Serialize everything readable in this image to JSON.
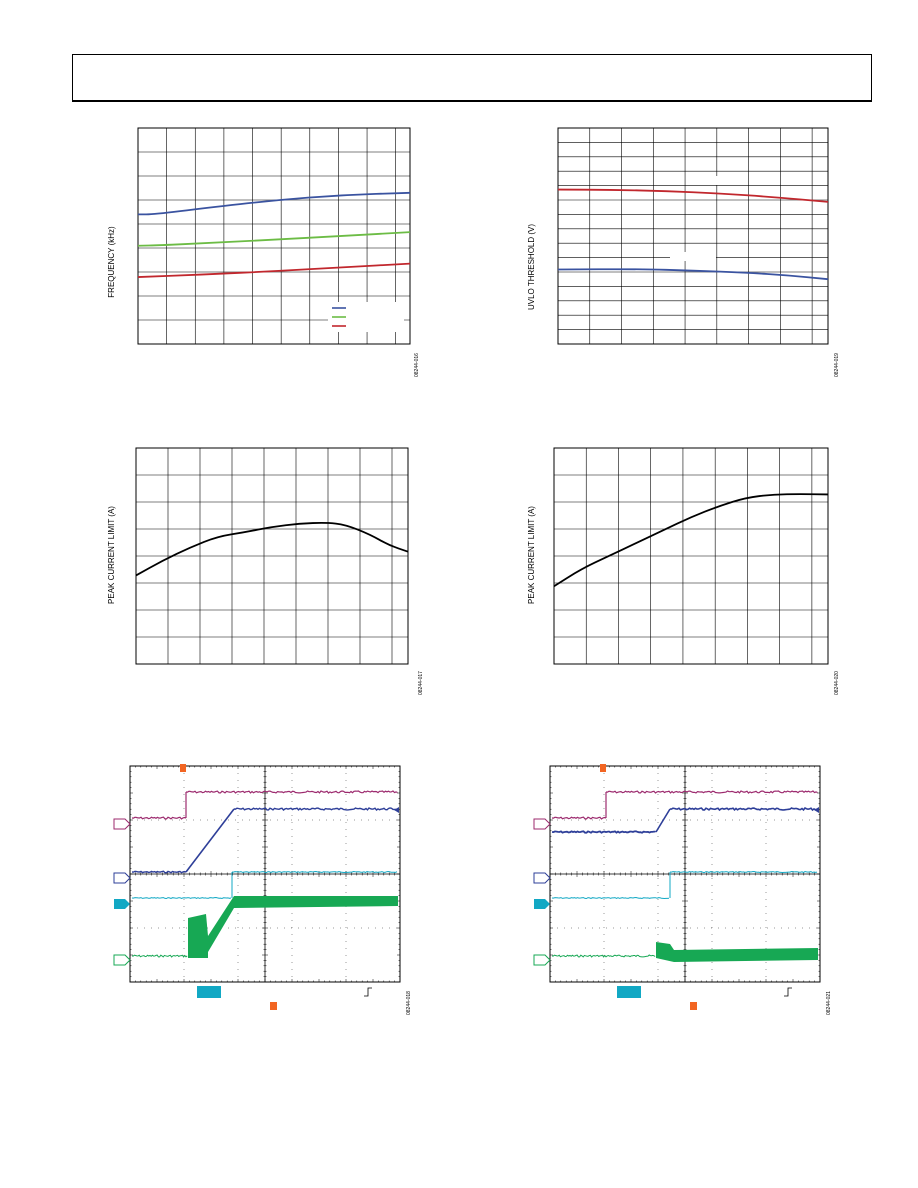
{
  "page": {
    "header": ""
  },
  "charts": [
    {
      "type": "line",
      "ylabel": "FREQUENCY (kHz)",
      "figure_code": "08244-016",
      "colors": [
        "#3a53a0",
        "#6cbc45",
        "#c1272d"
      ],
      "series": [
        {
          "name": "",
          "color": "#3a53a0",
          "points": [
            [
              0.0,
              0.6
            ],
            [
              0.06,
              0.6
            ],
            [
              0.25,
              0.63
            ],
            [
              0.5,
              0.665
            ],
            [
              0.75,
              0.69
            ],
            [
              1.0,
              0.7
            ]
          ]
        },
        {
          "name": "",
          "color": "#6cbc45",
          "points": [
            [
              0.0,
              0.455
            ],
            [
              0.08,
              0.457
            ],
            [
              0.25,
              0.467
            ],
            [
              0.5,
              0.483
            ],
            [
              0.75,
              0.5
            ],
            [
              1.0,
              0.518
            ]
          ]
        },
        {
          "name": "",
          "color": "#c1272d",
          "points": [
            [
              0.0,
              0.31
            ],
            [
              0.25,
              0.322
            ],
            [
              0.5,
              0.337
            ],
            [
              0.75,
              0.355
            ],
            [
              1.0,
              0.372
            ]
          ]
        }
      ]
    },
    {
      "type": "line",
      "ylabel": "UVLO THRESHOLD (V)",
      "figure_code": "08244-019",
      "series": [
        {
          "name": "",
          "color": "#c1272d",
          "points": [
            [
              0.0,
              0.715
            ],
            [
              0.2,
              0.714
            ],
            [
              0.4,
              0.708
            ],
            [
              0.6,
              0.697
            ],
            [
              0.8,
              0.68
            ],
            [
              1.0,
              0.658
            ]
          ]
        },
        {
          "name": "",
          "color": "#3a53a0",
          "points": [
            [
              0.0,
              0.345
            ],
            [
              0.3,
              0.347
            ],
            [
              0.5,
              0.34
            ],
            [
              0.7,
              0.33
            ],
            [
              0.85,
              0.318
            ],
            [
              1.0,
              0.3
            ]
          ]
        }
      ]
    },
    {
      "type": "line",
      "ylabel": "PEAK CURRENT LIMIT (A)",
      "figure_code": "08244-017",
      "series": [
        {
          "name": "",
          "color": "#000000",
          "points": [
            [
              0.0,
              0.41
            ],
            [
              0.1,
              0.48
            ],
            [
              0.2,
              0.54
            ],
            [
              0.3,
              0.59
            ],
            [
              0.4,
              0.61
            ],
            [
              0.5,
              0.635
            ],
            [
              0.6,
              0.65
            ],
            [
              0.7,
              0.655
            ],
            [
              0.77,
              0.645
            ],
            [
              0.86,
              0.6
            ],
            [
              0.93,
              0.55
            ],
            [
              1.0,
              0.52
            ]
          ]
        }
      ]
    },
    {
      "type": "line",
      "ylabel": "PEAK CURRENT LIMIT (A)",
      "figure_code": "08244-020",
      "series": [
        {
          "name": "",
          "color": "#000000",
          "points": [
            [
              0.0,
              0.36
            ],
            [
              0.1,
              0.44
            ],
            [
              0.2,
              0.5
            ],
            [
              0.3,
              0.56
            ],
            [
              0.4,
              0.62
            ],
            [
              0.5,
              0.68
            ],
            [
              0.6,
              0.73
            ],
            [
              0.7,
              0.77
            ],
            [
              0.8,
              0.785
            ],
            [
              0.9,
              0.787
            ],
            [
              1.0,
              0.785
            ]
          ]
        }
      ]
    },
    {
      "type": "scope",
      "figure_code": "08244-018",
      "trace_colors": {
        "ch1": "#9c2a6e",
        "ch2": "#2e3f99",
        "ch3": "#12a8c4",
        "ch4": "#17a854"
      },
      "accent": "#f26522"
    },
    {
      "type": "scope",
      "figure_code": "08244-021",
      "trace_colors": {
        "ch1": "#9c2a6e",
        "ch2": "#2e3f99",
        "ch3": "#12a8c4",
        "ch4": "#17a854"
      },
      "accent": "#f26522"
    }
  ]
}
